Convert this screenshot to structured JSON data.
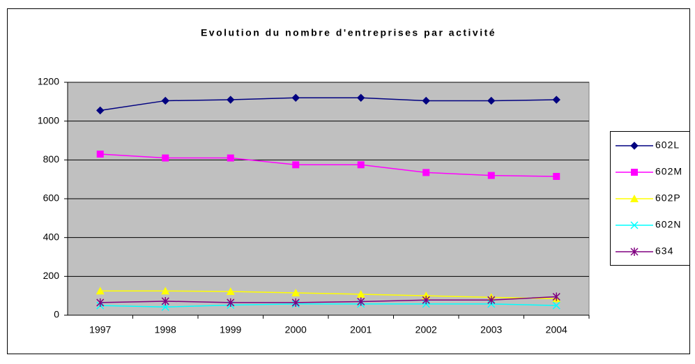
{
  "chart_data": {
    "type": "line",
    "title": "Evolution du nombre d'entreprises par activité",
    "categories": [
      "1997",
      "1998",
      "1999",
      "2000",
      "2001",
      "2002",
      "2003",
      "2004"
    ],
    "series": [
      {
        "name": "602L",
        "color": "#000080",
        "marker": "diamond",
        "values": [
          1055,
          1105,
          1110,
          1120,
          1120,
          1105,
          1105,
          1110
        ]
      },
      {
        "name": "602M",
        "color": "#ff00ff",
        "marker": "square",
        "values": [
          830,
          810,
          810,
          775,
          775,
          735,
          720,
          715
        ]
      },
      {
        "name": "602P",
        "color": "#ffff00",
        "marker": "triangle",
        "values": [
          125,
          125,
          122,
          115,
          108,
          100,
          92,
          85
        ]
      },
      {
        "name": "602N",
        "color": "#00ffff",
        "marker": "x",
        "values": [
          50,
          42,
          52,
          58,
          58,
          58,
          58,
          50
        ]
      },
      {
        "name": "634",
        "color": "#800080",
        "marker": "star",
        "values": [
          65,
          72,
          65,
          65,
          70,
          78,
          78,
          95
        ]
      }
    ],
    "ylim": [
      0,
      1200
    ],
    "yticks": [
      0,
      200,
      400,
      600,
      800,
      1000,
      1200
    ],
    "grid": true,
    "legend": "right"
  }
}
